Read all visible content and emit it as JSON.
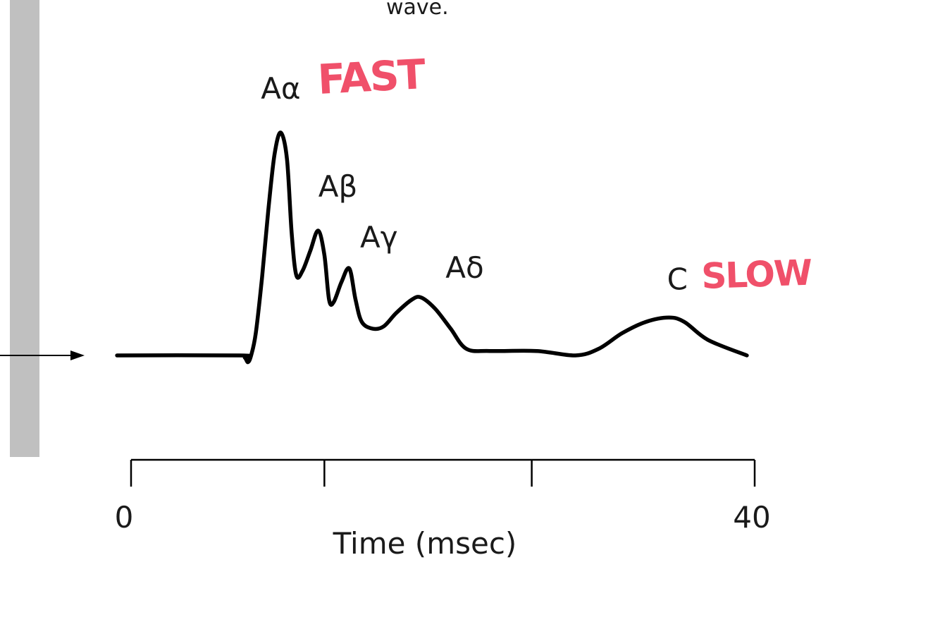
{
  "caption_fragment": "wave.",
  "annotations": {
    "fast": "FAST",
    "slow": "SLOW"
  },
  "colors": {
    "trace": "#000000",
    "annotation": "#f0506a",
    "side_bar": "#c0c0c0"
  },
  "chart_data": {
    "type": "line",
    "xlabel": "Time (msec)",
    "xlim": [
      0,
      40
    ],
    "x_tick_labels": [
      {
        "x": 0,
        "text": "0"
      },
      {
        "x": 40,
        "text": "40"
      }
    ],
    "x_ticks": [
      0,
      12.4,
      25.7,
      40
    ],
    "peaks": [
      {
        "label": "Aα",
        "x": 9.6,
        "y": 1.0
      },
      {
        "label": "Aβ",
        "x": 12.0,
        "y": 0.56
      },
      {
        "label": "Aγ",
        "x": 14.0,
        "y": 0.39
      },
      {
        "label": "Aδ",
        "x": 18.6,
        "y": 0.26
      },
      {
        "label": "C",
        "x": 34.5,
        "y": 0.17
      }
    ],
    "trace": [
      [
        -0.9,
        0.0
      ],
      [
        7.0,
        0.0
      ],
      [
        7.3,
        -0.01
      ],
      [
        7.5,
        -0.03
      ],
      [
        7.7,
        0.0
      ],
      [
        8.0,
        0.1
      ],
      [
        8.4,
        0.35
      ],
      [
        8.8,
        0.65
      ],
      [
        9.2,
        0.9
      ],
      [
        9.6,
        1.0
      ],
      [
        10.0,
        0.88
      ],
      [
        10.3,
        0.55
      ],
      [
        10.6,
        0.36
      ],
      [
        11.0,
        0.38
      ],
      [
        11.5,
        0.47
      ],
      [
        12.0,
        0.56
      ],
      [
        12.4,
        0.45
      ],
      [
        12.7,
        0.25
      ],
      [
        13.0,
        0.24
      ],
      [
        13.5,
        0.33
      ],
      [
        14.0,
        0.39
      ],
      [
        14.4,
        0.25
      ],
      [
        14.8,
        0.15
      ],
      [
        15.5,
        0.12
      ],
      [
        16.2,
        0.13
      ],
      [
        17.0,
        0.19
      ],
      [
        18.0,
        0.25
      ],
      [
        18.6,
        0.26
      ],
      [
        19.5,
        0.21
      ],
      [
        20.5,
        0.12
      ],
      [
        21.5,
        0.03
      ],
      [
        23.0,
        0.02
      ],
      [
        26.0,
        0.02
      ],
      [
        28.5,
        0.0
      ],
      [
        30.0,
        0.03
      ],
      [
        31.5,
        0.1
      ],
      [
        33.0,
        0.15
      ],
      [
        34.5,
        0.17
      ],
      [
        35.5,
        0.15
      ],
      [
        37.0,
        0.07
      ],
      [
        39.5,
        0.0
      ]
    ]
  }
}
